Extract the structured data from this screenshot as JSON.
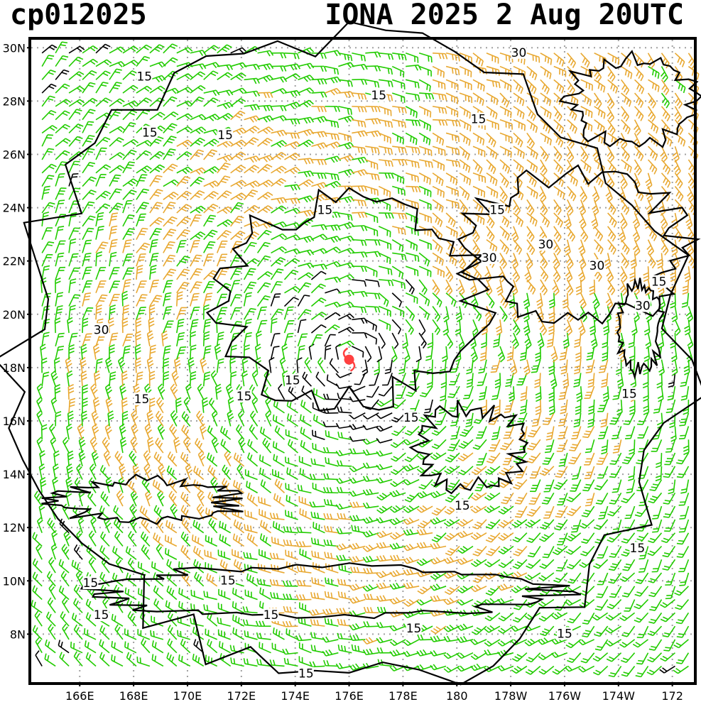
{
  "header": {
    "storm_id": "cp012025",
    "storm_time": "IONA 2025   2 Aug 20UTC"
  },
  "map": {
    "lat_labels": [
      "30N",
      "28N",
      "26N",
      "24N",
      "22N",
      "20N",
      "18N",
      "16N",
      "14N",
      "12N",
      "10N",
      "8N"
    ],
    "lon_labels": [
      "166E",
      "168E",
      "170E",
      "172E",
      "174E",
      "176E",
      "178E",
      "180",
      "178W",
      "176W",
      "174W",
      "172"
    ],
    "contour_labels": [
      {
        "text": "15",
        "lon": 168.4,
        "lat": 28.9
      },
      {
        "text": "15",
        "lon": 168.6,
        "lat": 26.8
      },
      {
        "text": "15",
        "lon": 171.4,
        "lat": 26.7
      },
      {
        "text": "15",
        "lon": 177.1,
        "lat": 28.2
      },
      {
        "text": "15",
        "lon": 180.8,
        "lat": 27.3
      },
      {
        "text": "15",
        "lon": 175.1,
        "lat": 23.9
      },
      {
        "text": "15",
        "lon": 181.5,
        "lat": 23.9
      },
      {
        "text": "30",
        "lon": 182.3,
        "lat": 29.8
      },
      {
        "text": "30",
        "lon": 183.3,
        "lat": 22.6
      },
      {
        "text": "30",
        "lon": 181.2,
        "lat": 22.1
      },
      {
        "text": "30",
        "lon": 185.2,
        "lat": 21.8
      },
      {
        "text": "30",
        "lon": 186.9,
        "lat": 20.3
      },
      {
        "text": "15",
        "lon": 187.5,
        "lat": 21.2
      },
      {
        "text": "30",
        "lon": 166.8,
        "lat": 19.4
      },
      {
        "text": "15",
        "lon": 168.3,
        "lat": 16.8
      },
      {
        "text": "15",
        "lon": 172.1,
        "lat": 16.9
      },
      {
        "text": "15",
        "lon": 173.9,
        "lat": 17.5
      },
      {
        "text": "15",
        "lon": 186.4,
        "lat": 17.0
      },
      {
        "text": "15",
        "lon": 178.3,
        "lat": 16.1
      },
      {
        "text": "15",
        "lon": 180.2,
        "lat": 12.8
      },
      {
        "text": "15",
        "lon": 186.7,
        "lat": 11.2
      },
      {
        "text": "15",
        "lon": 166.4,
        "lat": 9.9
      },
      {
        "text": "15",
        "lon": 171.5,
        "lat": 10.0
      },
      {
        "text": "15",
        "lon": 166.8,
        "lat": 8.7
      },
      {
        "text": "15",
        "lon": 173.1,
        "lat": 8.7
      },
      {
        "text": "15",
        "lon": 178.4,
        "lat": 8.2
      },
      {
        "text": "15",
        "lon": 184.0,
        "lat": 8.0
      },
      {
        "text": "15",
        "lon": 174.4,
        "lat": 6.5
      }
    ],
    "storm_center": {
      "lon": 176.0,
      "lat": 18.3,
      "symbol": "tropical-cyclone-symbol"
    },
    "colors": {
      "background": "#ffffff",
      "coast": "#000000",
      "grid": "#a0a0a0",
      "barb_calm": "#000000",
      "barb_moderate": "#22cc00",
      "barb_strong": "#e8a830",
      "storm": "#ff4040"
    }
  }
}
